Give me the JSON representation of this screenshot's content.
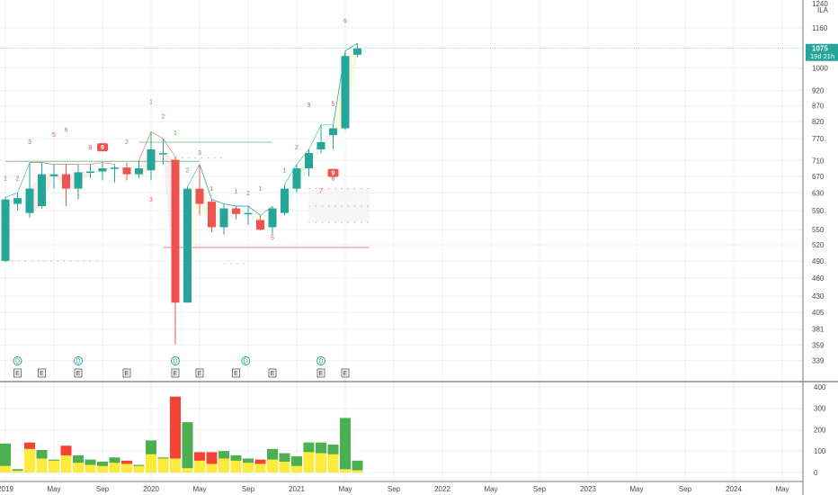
{
  "header": {
    "scale_label_top": "1240",
    "scale_label_unit": "ILA"
  },
  "price_badge": {
    "price": "1075",
    "countdown": "19d 21h"
  },
  "colors": {
    "up": "#26a69a",
    "down": "#ef5350",
    "grid": "#eef0f3",
    "axis_text": "#4a4a4a",
    "vol_up": "#4caf50",
    "vol_down": "#f44336",
    "vol_base": "#ffeb3b",
    "ann_up": "#4caf50",
    "ann_down": "#ef5350",
    "price_line": "#26a69a"
  },
  "chart_data": {
    "type": "candlestick",
    "interval": "monthly",
    "price_axis": {
      "scale": "log",
      "range": [
        320,
        1260
      ],
      "ticks": [
        339,
        359,
        381,
        405,
        430,
        460,
        490,
        520,
        550,
        590,
        630,
        670,
        710,
        770,
        820,
        870,
        920,
        1000,
        1160
      ]
    },
    "volume_axis": {
      "range": [
        -30,
        400
      ],
      "ticks": [
        0,
        100,
        200,
        300,
        400
      ]
    },
    "time_axis": {
      "labels": [
        {
          "label": "2019",
          "m": 0
        },
        {
          "label": "May",
          "m": 4
        },
        {
          "label": "Sep",
          "m": 8
        },
        {
          "label": "2020",
          "m": 12
        },
        {
          "label": "May",
          "m": 16
        },
        {
          "label": "Sep",
          "m": 20
        },
        {
          "label": "2021",
          "m": 24
        },
        {
          "label": "May",
          "m": 28
        },
        {
          "label": "Sep",
          "m": 32
        },
        {
          "label": "2022",
          "m": 36
        },
        {
          "label": "May",
          "m": 40
        },
        {
          "label": "Sep",
          "m": 44
        },
        {
          "label": "2023",
          "m": 48
        },
        {
          "label": "May",
          "m": 52
        },
        {
          "label": "Sep",
          "m": 56
        },
        {
          "label": "2024",
          "m": 60
        },
        {
          "label": "May",
          "m": 64
        }
      ]
    },
    "candles": [
      {
        "m": 0,
        "o": 490,
        "h": 620,
        "l": 488,
        "c": 615
      },
      {
        "m": 1,
        "o": 605,
        "h": 630,
        "l": 590,
        "c": 618
      },
      {
        "m": 2,
        "o": 585,
        "h": 705,
        "l": 575,
        "c": 640
      },
      {
        "m": 3,
        "o": 600,
        "h": 705,
        "l": 595,
        "c": 675
      },
      {
        "m": 4,
        "o": 670,
        "h": 700,
        "l": 640,
        "c": 675
      },
      {
        "m": 5,
        "o": 675,
        "h": 700,
        "l": 600,
        "c": 640
      },
      {
        "m": 6,
        "o": 640,
        "h": 700,
        "l": 615,
        "c": 680
      },
      {
        "m": 7,
        "o": 680,
        "h": 700,
        "l": 665,
        "c": 682
      },
      {
        "m": 8,
        "o": 682,
        "h": 705,
        "l": 660,
        "c": 690
      },
      {
        "m": 9,
        "o": 690,
        "h": 700,
        "l": 655,
        "c": 692
      },
      {
        "m": 10,
        "o": 692,
        "h": 705,
        "l": 660,
        "c": 675
      },
      {
        "m": 11,
        "o": 675,
        "h": 710,
        "l": 665,
        "c": 690
      },
      {
        "m": 12,
        "o": 685,
        "h": 790,
        "l": 660,
        "c": 740
      },
      {
        "m": 13,
        "o": 728,
        "h": 770,
        "l": 700,
        "c": 730
      },
      {
        "m": 14,
        "o": 712,
        "h": 720,
        "l": 360,
        "c": 420
      },
      {
        "m": 15,
        "o": 420,
        "h": 645,
        "l": 420,
        "c": 640
      },
      {
        "m": 16,
        "o": 640,
        "h": 700,
        "l": 580,
        "c": 605
      },
      {
        "m": 17,
        "o": 610,
        "h": 615,
        "l": 545,
        "c": 555
      },
      {
        "m": 18,
        "o": 555,
        "h": 605,
        "l": 540,
        "c": 595
      },
      {
        "m": 19,
        "o": 595,
        "h": 600,
        "l": 572,
        "c": 583
      },
      {
        "m": 20,
        "o": 583,
        "h": 600,
        "l": 560,
        "c": 585
      },
      {
        "m": 21,
        "o": 570,
        "h": 580,
        "l": 548,
        "c": 550
      },
      {
        "m": 22,
        "o": 555,
        "h": 600,
        "l": 540,
        "c": 595
      },
      {
        "m": 23,
        "o": 585,
        "h": 650,
        "l": 580,
        "c": 640
      },
      {
        "m": 24,
        "o": 640,
        "h": 700,
        "l": 630,
        "c": 690
      },
      {
        "m": 25,
        "o": 690,
        "h": 740,
        "l": 670,
        "c": 730
      },
      {
        "m": 26,
        "o": 740,
        "h": 810,
        "l": 730,
        "c": 760
      },
      {
        "m": 27,
        "o": 780,
        "h": 810,
        "l": 740,
        "c": 800
      },
      {
        "m": 28,
        "o": 800,
        "h": 1065,
        "l": 795,
        "c": 1045
      },
      {
        "m": 29,
        "o": 1050,
        "h": 1095,
        "l": 1040,
        "c": 1075
      }
    ],
    "volume": [
      {
        "m": 0,
        "v": 135,
        "base": 30,
        "dir": "up"
      },
      {
        "m": 1,
        "v": 15,
        "base": 8,
        "dir": "up"
      },
      {
        "m": 2,
        "v": 140,
        "base": 110,
        "dir": "down"
      },
      {
        "m": 3,
        "v": 105,
        "base": 65,
        "dir": "up"
      },
      {
        "m": 4,
        "v": 60,
        "base": 55,
        "dir": "up"
      },
      {
        "m": 5,
        "v": 125,
        "base": 80,
        "dir": "down"
      },
      {
        "m": 6,
        "v": 80,
        "base": 45,
        "dir": "up"
      },
      {
        "m": 7,
        "v": 60,
        "base": 35,
        "dir": "up"
      },
      {
        "m": 8,
        "v": 50,
        "base": 30,
        "dir": "up"
      },
      {
        "m": 9,
        "v": 70,
        "base": 45,
        "dir": "up"
      },
      {
        "m": 10,
        "v": 55,
        "base": 40,
        "dir": "down"
      },
      {
        "m": 11,
        "v": 35,
        "base": 30,
        "dir": "up"
      },
      {
        "m": 12,
        "v": 150,
        "base": 85,
        "dir": "up"
      },
      {
        "m": 13,
        "v": 70,
        "base": 65,
        "dir": "up"
      },
      {
        "m": 14,
        "v": 355,
        "base": 65,
        "dir": "down"
      },
      {
        "m": 15,
        "v": 235,
        "base": 20,
        "dir": "up"
      },
      {
        "m": 16,
        "v": 95,
        "base": 55,
        "dir": "down"
      },
      {
        "m": 17,
        "v": 95,
        "base": 40,
        "dir": "down"
      },
      {
        "m": 18,
        "v": 100,
        "base": 65,
        "dir": "up"
      },
      {
        "m": 19,
        "v": 80,
        "base": 55,
        "dir": "up"
      },
      {
        "m": 20,
        "v": 65,
        "base": 45,
        "dir": "up"
      },
      {
        "m": 21,
        "v": 60,
        "base": 40,
        "dir": "down"
      },
      {
        "m": 22,
        "v": 110,
        "base": 60,
        "dir": "up"
      },
      {
        "m": 23,
        "v": 90,
        "base": 50,
        "dir": "up"
      },
      {
        "m": 24,
        "v": 75,
        "base": 30,
        "dir": "up"
      },
      {
        "m": 25,
        "v": 140,
        "base": 95,
        "dir": "up"
      },
      {
        "m": 26,
        "v": 140,
        "base": 90,
        "dir": "up"
      },
      {
        "m": 27,
        "v": 130,
        "base": 85,
        "dir": "up"
      },
      {
        "m": 28,
        "v": 255,
        "base": 15,
        "dir": "up"
      },
      {
        "m": 29,
        "v": 55,
        "base": 10,
        "dir": "up"
      }
    ],
    "annotations": [
      {
        "m": 0,
        "p": 660,
        "t": "1",
        "c": "down"
      },
      {
        "m": 1,
        "p": 660,
        "t": "2",
        "c": "down"
      },
      {
        "m": 2,
        "p": 755,
        "t": "3",
        "c": "down"
      },
      {
        "m": 4,
        "p": 775,
        "t": "5",
        "c": "down"
      },
      {
        "m": 5,
        "p": 790,
        "t": "6",
        "c": "down"
      },
      {
        "m": 7,
        "p": 740,
        "t": "8",
        "c": "down"
      },
      {
        "m": 10,
        "p": 755,
        "t": "2",
        "c": "up"
      },
      {
        "m": 12,
        "p": 875,
        "t": "1",
        "c": "down"
      },
      {
        "m": 13,
        "p": 830,
        "t": "2",
        "c": "down"
      },
      {
        "m": 15,
        "p": 680,
        "t": "2",
        "c": "up"
      },
      {
        "m": 16,
        "p": 725,
        "t": "3",
        "c": "up"
      },
      {
        "m": 17,
        "p": 635,
        "t": "1",
        "c": "up"
      },
      {
        "m": 19,
        "p": 630,
        "t": "1",
        "c": "up"
      },
      {
        "m": 20,
        "p": 625,
        "t": "2",
        "c": "up"
      },
      {
        "m": 21,
        "p": 635,
        "t": "1",
        "c": "down"
      },
      {
        "m": 23,
        "p": 680,
        "t": "1",
        "c": "up"
      },
      {
        "m": 24,
        "p": 740,
        "t": "2",
        "c": "down"
      },
      {
        "m": 25,
        "p": 865,
        "t": "3",
        "c": "down"
      },
      {
        "m": 27,
        "p": 870,
        "t": "5",
        "c": "down"
      },
      {
        "m": 28,
        "p": 1180,
        "t": "6",
        "c": "down"
      },
      {
        "m": 27,
        "p": 660,
        "t": "8",
        "c": "down"
      },
      {
        "m": 26,
        "p": 630,
        "t": "7",
        "c": "down"
      },
      {
        "m": 6,
        "p": 625,
        "t": "1",
        "c": "down"
      },
      {
        "m": 12,
        "p": 610,
        "t": "3",
        "c": "down"
      },
      {
        "m": 14,
        "p": 780,
        "t": "1",
        "c": "up"
      },
      {
        "m": 22,
        "p": 530,
        "t": "5",
        "c": "down"
      }
    ],
    "setup_badges": [
      {
        "m": 8,
        "p": 742,
        "t": "9"
      },
      {
        "m": 27,
        "p": 675,
        "t": "9"
      }
    ],
    "events": [
      {
        "m": 1,
        "t": "D",
        "kind": "dividend"
      },
      {
        "m": 1,
        "t": "E",
        "kind": "earnings"
      },
      {
        "m": 3,
        "t": "E",
        "kind": "earnings"
      },
      {
        "m": 6,
        "t": "D",
        "kind": "dividend"
      },
      {
        "m": 6,
        "t": "E",
        "kind": "earnings"
      },
      {
        "m": 10,
        "t": "E",
        "kind": "earnings"
      },
      {
        "m": 14,
        "t": "D",
        "kind": "dividend"
      },
      {
        "m": 14,
        "t": "E",
        "kind": "earnings"
      },
      {
        "m": 16,
        "t": "E",
        "kind": "earnings"
      },
      {
        "m": 19,
        "t": "E",
        "kind": "earnings"
      },
      {
        "m": 19.8,
        "t": "D",
        "kind": "dividend"
      },
      {
        "m": 22,
        "t": "E",
        "kind": "earnings"
      },
      {
        "m": 26,
        "t": "D",
        "kind": "dividend"
      },
      {
        "m": 26,
        "t": "E",
        "kind": "earnings"
      },
      {
        "m": 28,
        "t": "E",
        "kind": "earnings"
      }
    ],
    "levels": [
      {
        "p": 708,
        "m0": 0,
        "m1": 16,
        "color": "up",
        "style": "solid"
      },
      {
        "p": 760,
        "m0": 11,
        "m1": 22,
        "color": "up",
        "style": "solid"
      },
      {
        "p": 490,
        "m0": 0,
        "m1": 8,
        "color": "down",
        "style": "dotted"
      },
      {
        "p": 717,
        "m0": 14,
        "m1": 18,
        "color": "down",
        "style": "dotted"
      },
      {
        "p": 485,
        "m0": 18,
        "m1": 20,
        "color": "down",
        "style": "dotted"
      },
      {
        "p": 515,
        "m0": 13,
        "m1": 30,
        "color": "down",
        "style": "solid"
      },
      {
        "p": 565,
        "m0": 25,
        "m1": 30,
        "color": "down",
        "style": "dotted"
      },
      {
        "p": 600,
        "m0": 25,
        "m1": 30,
        "color": "down",
        "style": "dotted"
      },
      {
        "p": 640,
        "m0": 25,
        "m1": 30,
        "color": "down",
        "style": "dotted"
      }
    ]
  }
}
